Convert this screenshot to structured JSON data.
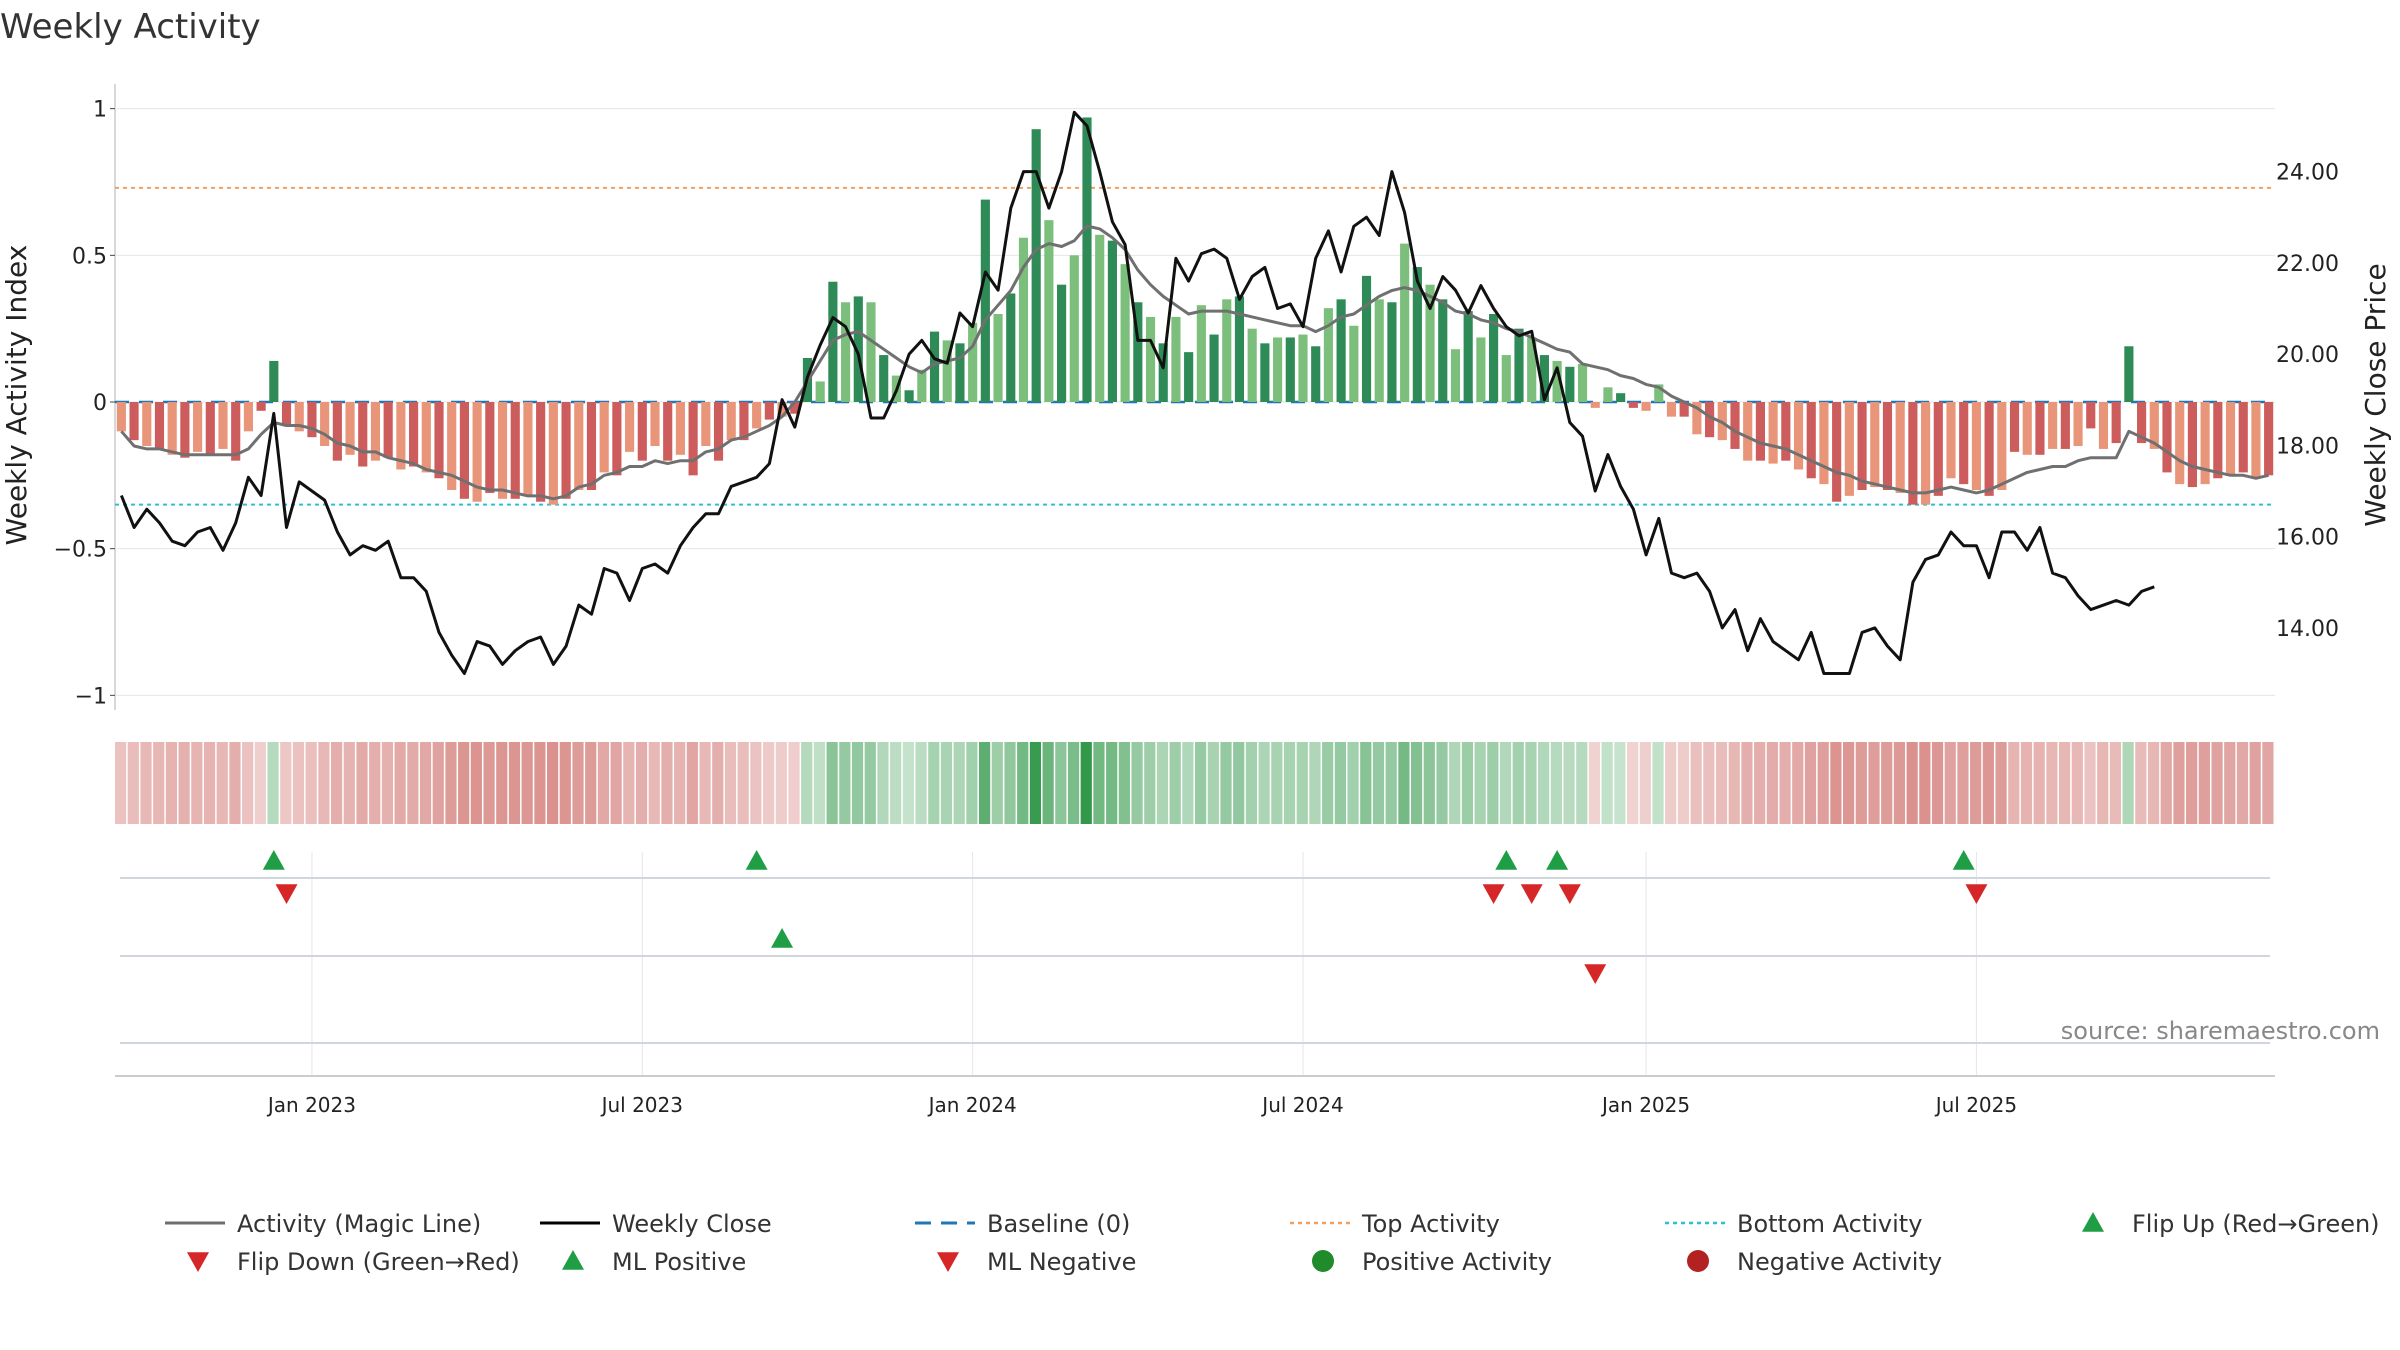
{
  "chart_data": {
    "type": "bar",
    "title": "Weekly Activity",
    "ylabel_left": "Weekly Activity Index",
    "ylabel_right": "Weekly Close Price",
    "source": "source: sharemaestro.com",
    "ylim_left": [
      -1.05,
      1.05
    ],
    "ylim_right": [
      12.2,
      25.7
    ],
    "left_ticks": [
      {
        "value": 1,
        "label": "1"
      },
      {
        "value": 0.5,
        "label": "0.5"
      },
      {
        "value": 0,
        "label": "0"
      },
      {
        "value": -0.5,
        "label": "−0.5"
      },
      {
        "value": -1,
        "label": "−1"
      }
    ],
    "right_ticks": [
      {
        "value": 24,
        "label": "24.00"
      },
      {
        "value": 22,
        "label": "22.00"
      },
      {
        "value": 20,
        "label": "20.00"
      },
      {
        "value": 18,
        "label": "18.00"
      },
      {
        "value": 16,
        "label": "16.00"
      },
      {
        "value": 14,
        "label": "14.00"
      }
    ],
    "date_ticks": [
      {
        "week": 15,
        "label": "Jan 2023"
      },
      {
        "week": 41,
        "label": "Jul 2023"
      },
      {
        "week": 67,
        "label": "Jan 2024"
      },
      {
        "week": 93,
        "label": "Jul 2024"
      },
      {
        "week": 120,
        "label": "Jan 2025"
      },
      {
        "week": 146,
        "label": "Jul 2025"
      }
    ],
    "top_activity": 0.73,
    "bottom_activity": -0.35,
    "activity": [
      -0.1,
      -0.13,
      -0.15,
      -0.16,
      -0.18,
      -0.19,
      -0.17,
      -0.18,
      -0.16,
      -0.2,
      -0.1,
      -0.03,
      0.14,
      -0.08,
      -0.1,
      -0.12,
      -0.15,
      -0.2,
      -0.18,
      -0.22,
      -0.2,
      -0.19,
      -0.23,
      -0.22,
      -0.24,
      -0.26,
      -0.3,
      -0.33,
      -0.34,
      -0.31,
      -0.33,
      -0.33,
      -0.32,
      -0.34,
      -0.35,
      -0.33,
      -0.3,
      -0.3,
      -0.24,
      -0.25,
      -0.17,
      -0.2,
      -0.15,
      -0.2,
      -0.18,
      -0.25,
      -0.15,
      -0.2,
      -0.13,
      -0.13,
      -0.09,
      -0.06,
      -0.05,
      -0.04,
      0.15,
      0.07,
      0.41,
      0.34,
      0.36,
      0.34,
      0.16,
      0.09,
      0.04,
      0.11,
      0.24,
      0.21,
      0.2,
      0.27,
      0.69,
      0.3,
      0.37,
      0.56,
      0.93,
      0.62,
      0.4,
      0.5,
      0.97,
      0.57,
      0.55,
      0.47,
      0.34,
      0.29,
      0.2,
      0.29,
      0.17,
      0.33,
      0.23,
      0.35,
      0.36,
      0.25,
      0.2,
      0.22,
      0.22,
      0.23,
      0.19,
      0.32,
      0.35,
      0.26,
      0.43,
      0.35,
      0.34,
      0.54,
      0.46,
      0.4,
      0.35,
      0.18,
      0.31,
      0.22,
      0.3,
      0.16,
      0.25,
      0.22,
      0.16,
      0.14,
      0.12,
      0.13,
      -0.02,
      0.05,
      0.03,
      -0.02,
      -0.03,
      0.06,
      -0.05,
      -0.05,
      -0.11,
      -0.12,
      -0.13,
      -0.16,
      -0.2,
      -0.2,
      -0.21,
      -0.2,
      -0.23,
      -0.26,
      -0.28,
      -0.34,
      -0.32,
      -0.3,
      -0.29,
      -0.3,
      -0.31,
      -0.35,
      -0.35,
      -0.32,
      -0.26,
      -0.28,
      -0.3,
      -0.32,
      -0.3,
      -0.17,
      -0.18,
      -0.18,
      -0.16,
      -0.16,
      -0.15,
      -0.09,
      -0.16,
      -0.14,
      0.19,
      -0.14,
      -0.16,
      -0.24,
      -0.28,
      -0.29,
      -0.28,
      -0.26,
      -0.25,
      -0.24,
      -0.26,
      -0.25
    ],
    "magic_line": [
      -0.1,
      -0.15,
      -0.16,
      -0.16,
      -0.17,
      -0.18,
      -0.18,
      -0.18,
      -0.18,
      -0.18,
      -0.16,
      -0.11,
      -0.07,
      -0.08,
      -0.08,
      -0.09,
      -0.11,
      -0.14,
      -0.15,
      -0.17,
      -0.17,
      -0.19,
      -0.2,
      -0.21,
      -0.23,
      -0.24,
      -0.25,
      -0.27,
      -0.29,
      -0.3,
      -0.3,
      -0.31,
      -0.32,
      -0.32,
      -0.33,
      -0.32,
      -0.29,
      -0.28,
      -0.25,
      -0.24,
      -0.22,
      -0.22,
      -0.2,
      -0.21,
      -0.2,
      -0.2,
      -0.17,
      -0.16,
      -0.13,
      -0.12,
      -0.1,
      -0.08,
      -0.05,
      0.0,
      0.07,
      0.14,
      0.21,
      0.23,
      0.24,
      0.21,
      0.18,
      0.15,
      0.12,
      0.1,
      0.13,
      0.14,
      0.15,
      0.19,
      0.28,
      0.33,
      0.38,
      0.46,
      0.52,
      0.54,
      0.53,
      0.55,
      0.6,
      0.59,
      0.56,
      0.52,
      0.45,
      0.4,
      0.36,
      0.33,
      0.3,
      0.31,
      0.31,
      0.31,
      0.3,
      0.29,
      0.28,
      0.27,
      0.26,
      0.26,
      0.24,
      0.26,
      0.29,
      0.3,
      0.33,
      0.36,
      0.38,
      0.39,
      0.38,
      0.36,
      0.34,
      0.31,
      0.3,
      0.28,
      0.27,
      0.25,
      0.24,
      0.22,
      0.2,
      0.18,
      0.17,
      0.13,
      0.12,
      0.11,
      0.09,
      0.08,
      0.06,
      0.05,
      0.02,
      0.0,
      -0.02,
      -0.05,
      -0.07,
      -0.1,
      -0.12,
      -0.14,
      -0.15,
      -0.16,
      -0.18,
      -0.2,
      -0.22,
      -0.24,
      -0.25,
      -0.27,
      -0.28,
      -0.29,
      -0.3,
      -0.31,
      -0.31,
      -0.3,
      -0.29,
      -0.3,
      -0.31,
      -0.3,
      -0.28,
      -0.26,
      -0.24,
      -0.23,
      -0.22,
      -0.22,
      -0.2,
      -0.19,
      -0.19,
      -0.19,
      -0.1,
      -0.12,
      -0.14,
      -0.17,
      -0.2,
      -0.22,
      -0.23,
      -0.24,
      -0.25,
      -0.25,
      -0.26,
      -0.25
    ],
    "close": [
      16.9,
      16.2,
      16.6,
      16.3,
      15.9,
      15.8,
      16.1,
      16.2,
      15.7,
      16.3,
      17.3,
      16.9,
      18.7,
      16.2,
      17.2,
      17.0,
      16.8,
      16.1,
      15.6,
      15.8,
      15.7,
      15.9,
      15.1,
      15.1,
      14.8,
      13.9,
      13.4,
      13.0,
      13.7,
      13.6,
      13.2,
      13.5,
      13.7,
      13.8,
      13.2,
      13.6,
      14.5,
      14.3,
      15.3,
      15.2,
      14.6,
      15.3,
      15.4,
      15.2,
      15.8,
      16.2,
      16.5,
      16.5,
      17.1,
      17.2,
      17.3,
      17.6,
      19.0,
      18.4,
      19.5,
      20.2,
      20.8,
      20.6,
      20.0,
      18.6,
      18.6,
      19.2,
      20.0,
      20.3,
      19.9,
      19.8,
      20.9,
      20.6,
      21.8,
      21.4,
      23.2,
      24.0,
      24.0,
      23.2,
      24.0,
      25.3,
      25.0,
      24.0,
      22.9,
      22.4,
      20.3,
      20.3,
      19.7,
      22.1,
      21.6,
      22.2,
      22.3,
      22.1,
      21.2,
      21.7,
      21.9,
      21.0,
      21.1,
      20.6,
      22.1,
      22.7,
      21.8,
      22.8,
      23.0,
      22.6,
      24.0,
      23.1,
      21.6,
      21.0,
      21.7,
      21.4,
      20.9,
      21.5,
      21.0,
      20.6,
      20.4,
      20.5,
      19.0,
      19.7,
      18.5,
      18.2,
      17.0,
      17.8,
      17.1,
      16.6,
      15.6,
      16.4,
      15.2,
      15.1,
      15.2,
      14.8,
      14.0,
      14.4,
      13.5,
      14.2,
      13.7,
      13.5,
      13.3,
      13.9,
      13.0,
      13.0,
      13.0,
      13.9,
      14.0,
      13.6,
      13.3,
      15.0,
      15.5,
      15.6,
      16.1,
      15.8,
      15.8,
      15.1,
      16.1,
      16.1,
      15.7,
      16.2,
      15.2,
      15.1,
      14.7,
      14.4,
      14.5,
      14.6,
      14.5,
      14.8,
      14.9
    ],
    "flip_up_weeks": [
      12,
      50,
      109,
      113,
      145
    ],
    "flip_down_weeks": [
      13,
      108,
      111,
      114,
      146
    ],
    "ml_positive_weeks": [
      52
    ],
    "ml_negative_weeks": [
      116
    ],
    "legend": [
      {
        "key": "magic",
        "label": "Activity (Magic Line)",
        "color": "#6e6e6e"
      },
      {
        "key": "close",
        "label": "Weekly Close",
        "color": "#000000"
      },
      {
        "key": "baseline",
        "label": "Baseline (0)",
        "color": "#1f77b4"
      },
      {
        "key": "top",
        "label": "Top Activity",
        "color": "#f0a060"
      },
      {
        "key": "bottom",
        "label": "Bottom Activity",
        "color": "#2bc0d8"
      },
      {
        "key": "flipup",
        "label": "Flip Up (Red→Green)",
        "color": "#1f9e46"
      },
      {
        "key": "flipdown",
        "label": "Flip Down (Green→Red)",
        "color": "#d62728"
      },
      {
        "key": "mlpos",
        "label": "ML Positive",
        "color": "#1f9e46"
      },
      {
        "key": "mlneg",
        "label": "ML Negative",
        "color": "#d62728"
      },
      {
        "key": "posact",
        "label": "Positive Activity",
        "color": "#1f8b2a"
      },
      {
        "key": "negact",
        "label": "Negative Activity",
        "color": "#b22222"
      }
    ]
  }
}
